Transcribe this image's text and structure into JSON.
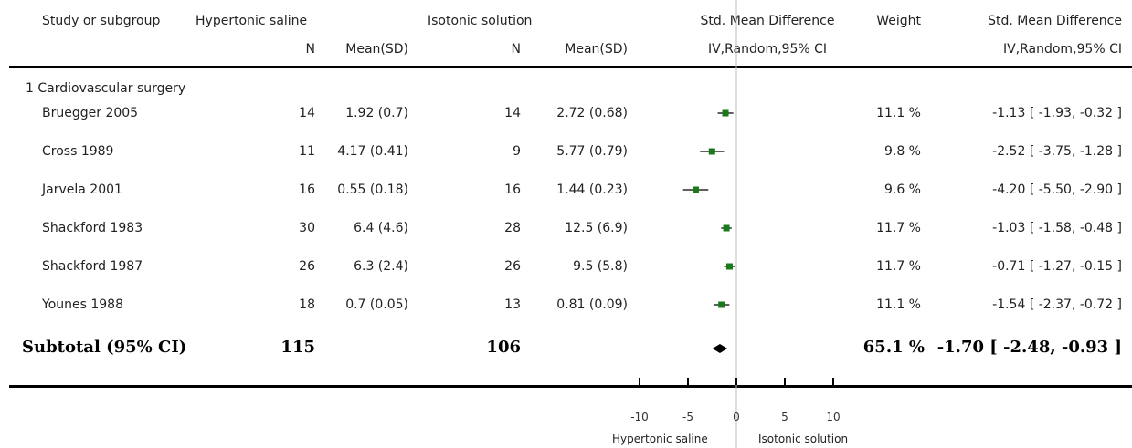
{
  "header": {
    "study": "Study or subgroup",
    "group1": "Hypertonic saline",
    "group2": "Isotonic solution",
    "n": "N",
    "mean_sd": "Mean(SD)",
    "effect_title": "Std. Mean Difference",
    "effect_method": "IV,Random,95% CI",
    "weight": "Weight",
    "result_title": "Std. Mean Difference",
    "result_method": "IV,Random,95% CI"
  },
  "subgroup_title": "1 Cardiovascular surgery",
  "subtotal": {
    "label": "Subtotal (95% CI)",
    "n1": "115",
    "n2": "106",
    "weight": "65.1 %",
    "ci_text": "-1.70 [ -2.48, -0.93 ]"
  },
  "axis": {
    "left_label": "Hypertonic saline",
    "right_label": "Isotonic solution"
  },
  "colors": {
    "marker": "#1a7a1a",
    "diamond": "#000000",
    "refline": "#bbbbbb"
  },
  "chart_data": {
    "type": "forest",
    "xlim": [
      -10,
      10
    ],
    "xticks": [
      -10,
      -5,
      0,
      5,
      10
    ],
    "studies": [
      {
        "name": "Bruegger 2005",
        "n1": "14",
        "ms1": "1.92 (0.7)",
        "n2": "14",
        "ms2": "2.72 (0.68)",
        "weight": "11.1 %",
        "ci_text": "-1.13 [ -1.93, -0.32 ]",
        "est": -1.13,
        "lo": -1.93,
        "hi": -0.32
      },
      {
        "name": "Cross 1989",
        "n1": "11",
        "ms1": "4.17 (0.41)",
        "n2": "9",
        "ms2": "5.77 (0.79)",
        "weight": "9.8 %",
        "ci_text": "-2.52 [ -3.75, -1.28 ]",
        "est": -2.52,
        "lo": -3.75,
        "hi": -1.28
      },
      {
        "name": "Jarvela 2001",
        "n1": "16",
        "ms1": "0.55 (0.18)",
        "n2": "16",
        "ms2": "1.44 (0.23)",
        "weight": "9.6 %",
        "ci_text": "-4.20 [ -5.50, -2.90 ]",
        "est": -4.2,
        "lo": -5.5,
        "hi": -2.9
      },
      {
        "name": "Shackford 1983",
        "n1": "30",
        "ms1": "6.4 (4.6)",
        "n2": "28",
        "ms2": "12.5 (6.9)",
        "weight": "11.7 %",
        "ci_text": "-1.03 [ -1.58, -0.48 ]",
        "est": -1.03,
        "lo": -1.58,
        "hi": -0.48
      },
      {
        "name": "Shackford 1987",
        "n1": "26",
        "ms1": "6.3 (2.4)",
        "n2": "26",
        "ms2": "9.5 (5.8)",
        "weight": "11.7 %",
        "ci_text": "-0.71 [ -1.27, -0.15 ]",
        "est": -0.71,
        "lo": -1.27,
        "hi": -0.15
      },
      {
        "name": "Younes 1988",
        "n1": "18",
        "ms1": "0.7 (0.05)",
        "n2": "13",
        "ms2": "0.81 (0.09)",
        "weight": "11.1 %",
        "ci_text": "-1.54 [ -2.37, -0.72 ]",
        "est": -1.54,
        "lo": -2.37,
        "hi": -0.72
      }
    ],
    "pooled": {
      "est": -1.7,
      "lo": -2.48,
      "hi": -0.93
    }
  }
}
